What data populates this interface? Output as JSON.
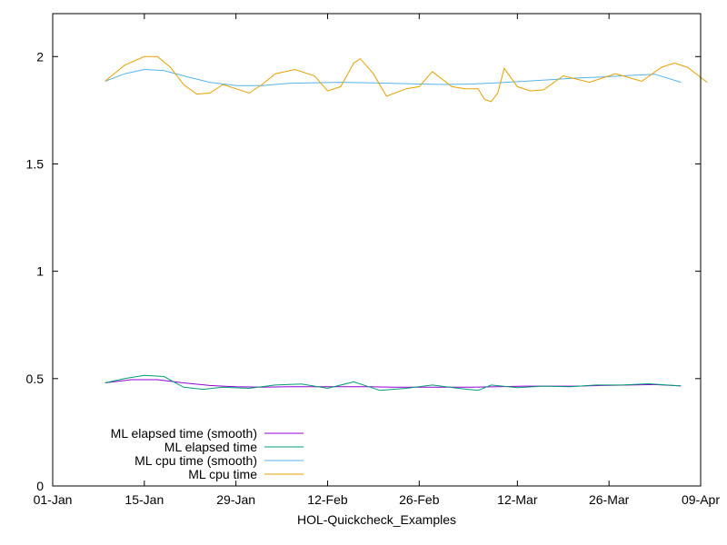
{
  "chart_data": {
    "type": "line",
    "title": "",
    "xlabel": "HOL-Quickcheck_Examples",
    "ylabel": "",
    "xlim": [
      "2016-01-01",
      "2016-04-09"
    ],
    "ylim": [
      0,
      2.2
    ],
    "x_ticks": [
      "01-Jan",
      "15-Jan",
      "29-Jan",
      "12-Feb",
      "26-Feb",
      "12-Mar",
      "26-Mar",
      "09-Apr"
    ],
    "x_tick_dates": [
      "2016-01-01",
      "2016-01-15",
      "2016-01-29",
      "2016-02-12",
      "2016-02-26",
      "2016-03-12",
      "2016-03-26",
      "2016-04-09"
    ],
    "y_ticks": [
      "0",
      "0.5",
      "1",
      "1.5",
      "2"
    ],
    "y_tick_values": [
      0,
      0.5,
      1,
      1.5,
      2
    ],
    "grid": false,
    "legend_position": "bottom-left",
    "series": [
      {
        "name": "ML elapsed time (smooth)",
        "color": "#9400d3",
        "points": [
          [
            "2016-01-09",
            0.48
          ],
          [
            "2016-01-13",
            0.495
          ],
          [
            "2016-01-17",
            0.495
          ],
          [
            "2016-01-21",
            0.48
          ],
          [
            "2016-01-25",
            0.468
          ],
          [
            "2016-01-29",
            0.462
          ],
          [
            "2016-02-02",
            0.46
          ],
          [
            "2016-02-06",
            0.462
          ],
          [
            "2016-02-10",
            0.462
          ],
          [
            "2016-02-14",
            0.462
          ],
          [
            "2016-02-18",
            0.462
          ],
          [
            "2016-02-22",
            0.46
          ],
          [
            "2016-02-26",
            0.46
          ],
          [
            "2016-03-01",
            0.46
          ],
          [
            "2016-03-05",
            0.46
          ],
          [
            "2016-03-09",
            0.462
          ],
          [
            "2016-03-13",
            0.465
          ],
          [
            "2016-03-17",
            0.465
          ],
          [
            "2016-03-21",
            0.465
          ],
          [
            "2016-03-25",
            0.468
          ],
          [
            "2016-03-29",
            0.47
          ],
          [
            "2016-04-02",
            0.472
          ],
          [
            "2016-04-06",
            0.466
          ]
        ]
      },
      {
        "name": "ML elapsed time",
        "color": "#009e73",
        "points": [
          [
            "2016-01-09",
            0.48
          ],
          [
            "2016-01-12",
            0.5
          ],
          [
            "2016-01-15",
            0.515
          ],
          [
            "2016-01-18",
            0.51
          ],
          [
            "2016-01-21",
            0.46
          ],
          [
            "2016-01-24",
            0.45
          ],
          [
            "2016-01-27",
            0.46
          ],
          [
            "2016-01-31",
            0.455
          ],
          [
            "2016-02-04",
            0.47
          ],
          [
            "2016-02-08",
            0.475
          ],
          [
            "2016-02-12",
            0.455
          ],
          [
            "2016-02-16",
            0.485
          ],
          [
            "2016-02-20",
            0.445
          ],
          [
            "2016-02-24",
            0.455
          ],
          [
            "2016-02-28",
            0.47
          ],
          [
            "2016-03-03",
            0.455
          ],
          [
            "2016-03-06",
            0.445
          ],
          [
            "2016-03-08",
            0.47
          ],
          [
            "2016-03-12",
            0.458
          ],
          [
            "2016-03-16",
            0.465
          ],
          [
            "2016-03-20",
            0.462
          ],
          [
            "2016-03-24",
            0.47
          ],
          [
            "2016-03-28",
            0.47
          ],
          [
            "2016-04-01",
            0.476
          ],
          [
            "2016-04-06",
            0.466
          ]
        ]
      },
      {
        "name": "ML cpu time (smooth)",
        "color": "#56b4e9",
        "points": [
          [
            "2016-01-09",
            1.885
          ],
          [
            "2016-01-12",
            1.92
          ],
          [
            "2016-01-15",
            1.94
          ],
          [
            "2016-01-18",
            1.935
          ],
          [
            "2016-01-21",
            1.91
          ],
          [
            "2016-01-25",
            1.88
          ],
          [
            "2016-01-29",
            1.865
          ],
          [
            "2016-02-02",
            1.865
          ],
          [
            "2016-02-06",
            1.875
          ],
          [
            "2016-02-10",
            1.878
          ],
          [
            "2016-02-14",
            1.88
          ],
          [
            "2016-02-18",
            1.878
          ],
          [
            "2016-02-22",
            1.875
          ],
          [
            "2016-02-26",
            1.872
          ],
          [
            "2016-03-01",
            1.87
          ],
          [
            "2016-03-05",
            1.872
          ],
          [
            "2016-03-09",
            1.878
          ],
          [
            "2016-03-13",
            1.885
          ],
          [
            "2016-03-17",
            1.892
          ],
          [
            "2016-03-21",
            1.9
          ],
          [
            "2016-03-25",
            1.905
          ],
          [
            "2016-03-29",
            1.912
          ],
          [
            "2016-04-02",
            1.918
          ],
          [
            "2016-04-06",
            1.88
          ]
        ]
      },
      {
        "name": "ML cpu time",
        "color": "#e69f00",
        "points": [
          [
            "2016-01-09",
            1.885
          ],
          [
            "2016-01-12",
            1.96
          ],
          [
            "2016-01-15",
            2.0
          ],
          [
            "2016-01-17",
            2.0
          ],
          [
            "2016-01-19",
            1.95
          ],
          [
            "2016-01-21",
            1.87
          ],
          [
            "2016-01-23",
            1.825
          ],
          [
            "2016-01-25",
            1.83
          ],
          [
            "2016-01-27",
            1.87
          ],
          [
            "2016-01-29",
            1.85
          ],
          [
            "2016-01-31",
            1.83
          ],
          [
            "2016-02-02",
            1.87
          ],
          [
            "2016-02-04",
            1.92
          ],
          [
            "2016-02-07",
            1.94
          ],
          [
            "2016-02-10",
            1.91
          ],
          [
            "2016-02-12",
            1.84
          ],
          [
            "2016-02-14",
            1.86
          ],
          [
            "2016-02-16",
            1.97
          ],
          [
            "2016-02-17",
            1.99
          ],
          [
            "2016-02-19",
            1.92
          ],
          [
            "2016-02-21",
            1.815
          ],
          [
            "2016-02-24",
            1.85
          ],
          [
            "2016-02-26",
            1.86
          ],
          [
            "2016-02-28",
            1.93
          ],
          [
            "2016-03-02",
            1.86
          ],
          [
            "2016-03-04",
            1.85
          ],
          [
            "2016-03-06",
            1.85
          ],
          [
            "2016-03-07",
            1.8
          ],
          [
            "2016-03-08",
            1.79
          ],
          [
            "2016-03-09",
            1.83
          ],
          [
            "2016-03-10",
            1.945
          ],
          [
            "2016-03-12",
            1.86
          ],
          [
            "2016-03-14",
            1.84
          ],
          [
            "2016-03-16",
            1.845
          ],
          [
            "2016-03-19",
            1.91
          ],
          [
            "2016-03-23",
            1.88
          ],
          [
            "2016-03-27",
            1.92
          ],
          [
            "2016-03-31",
            1.885
          ],
          [
            "2016-04-03",
            1.95
          ],
          [
            "2016-04-05",
            1.97
          ],
          [
            "2016-04-07",
            1.95
          ],
          [
            "2016-04-10",
            1.88
          ]
        ]
      }
    ]
  }
}
